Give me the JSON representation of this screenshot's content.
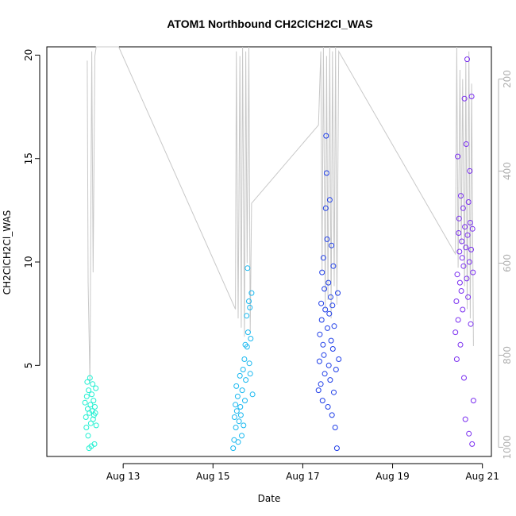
{
  "chart_data": {
    "type": "scatter",
    "title": "ATOM1 Northbound CH2ClCH2Cl_WAS",
    "xlabel": "Date",
    "ylabel": "CH2ClCH2Cl_WAS",
    "x_ticks": [
      "Aug 13",
      "Aug 15",
      "Aug 17",
      "Aug 19",
      "Aug 21"
    ],
    "x_tick_days": [
      13,
      15,
      17,
      19,
      21
    ],
    "xlim_days": [
      11.3,
      21.2
    ],
    "ylim": [
      0.6,
      20.4
    ],
    "y_ticks": [
      5,
      10,
      15,
      20
    ],
    "secondary_axis": {
      "side": "right",
      "ticks": [
        200,
        400,
        600,
        800,
        1000
      ],
      "ylim": [
        1020,
        130
      ],
      "color": "#b0b0b0",
      "series": {
        "name": "",
        "color": "#c8c8c8",
        "points": [
          [
            12.2,
            160
          ],
          [
            12.22,
            640
          ],
          [
            12.26,
            860
          ],
          [
            12.3,
            140
          ],
          [
            12.33,
            620
          ],
          [
            12.37,
            150
          ],
          [
            12.4,
            130
          ],
          [
            12.9,
            130
          ],
          [
            15.5,
            700
          ],
          [
            15.52,
            140
          ],
          [
            15.56,
            720
          ],
          [
            15.6,
            150
          ],
          [
            15.63,
            740
          ],
          [
            15.66,
            130
          ],
          [
            15.7,
            760
          ],
          [
            15.73,
            140
          ],
          [
            15.76,
            600
          ],
          [
            15.8,
            130
          ],
          [
            15.83,
            750
          ],
          [
            15.86,
            470
          ],
          [
            17.35,
            300
          ],
          [
            17.4,
            140
          ],
          [
            17.43,
            620
          ],
          [
            17.46,
            130
          ],
          [
            17.5,
            700
          ],
          [
            17.53,
            150
          ],
          [
            17.56,
            680
          ],
          [
            17.6,
            130
          ],
          [
            17.63,
            720
          ],
          [
            17.66,
            140
          ],
          [
            17.7,
            650
          ],
          [
            17.73,
            130
          ],
          [
            17.76,
            690
          ],
          [
            17.8,
            140
          ],
          [
            20.4,
            580
          ],
          [
            20.43,
            130
          ],
          [
            20.46,
            610
          ],
          [
            20.5,
            180
          ],
          [
            20.53,
            560
          ],
          [
            20.56,
            200
          ],
          [
            20.6,
            650
          ],
          [
            20.63,
            160
          ],
          [
            20.66,
            700
          ],
          [
            20.7,
            140
          ],
          [
            20.73,
            720
          ],
          [
            20.76,
            210
          ],
          [
            20.8,
            780
          ]
        ]
      }
    },
    "series": [
      {
        "name": "",
        "color": "#21f0d2",
        "points": [
          [
            12.15,
            3.2
          ],
          [
            12.17,
            2.5
          ],
          [
            12.18,
            2.0
          ],
          [
            12.19,
            3.5
          ],
          [
            12.2,
            4.2
          ],
          [
            12.21,
            2.9
          ],
          [
            12.22,
            1.6
          ],
          [
            12.23,
            3.8
          ],
          [
            12.24,
            1.0
          ],
          [
            12.25,
            2.7
          ],
          [
            12.26,
            4.4
          ],
          [
            12.27,
            3.1
          ],
          [
            12.28,
            2.2
          ],
          [
            12.29,
            1.1
          ],
          [
            12.3,
            3.6
          ],
          [
            12.31,
            2.8
          ],
          [
            12.32,
            4.1
          ],
          [
            12.33,
            2.4
          ],
          [
            12.34,
            3.3
          ],
          [
            12.35,
            2.6
          ],
          [
            12.36,
            1.2
          ],
          [
            12.37,
            3.0
          ],
          [
            12.38,
            2.7
          ],
          [
            12.39,
            3.9
          ],
          [
            12.4,
            2.1
          ]
        ]
      },
      {
        "name": "",
        "color": "#18b8f0",
        "points": [
          [
            15.45,
            1.0
          ],
          [
            15.47,
            1.4
          ],
          [
            15.48,
            2.5
          ],
          [
            15.5,
            3.1
          ],
          [
            15.51,
            2.0
          ],
          [
            15.52,
            4.0
          ],
          [
            15.53,
            2.8
          ],
          [
            15.55,
            3.5
          ],
          [
            15.56,
            1.3
          ],
          [
            15.58,
            2.3
          ],
          [
            15.6,
            4.5
          ],
          [
            15.61,
            3.0
          ],
          [
            15.62,
            2.6
          ],
          [
            15.64,
            1.6
          ],
          [
            15.65,
            3.8
          ],
          [
            15.67,
            4.8
          ],
          [
            15.68,
            2.1
          ],
          [
            15.7,
            5.3
          ],
          [
            15.71,
            3.3
          ],
          [
            15.72,
            6.0
          ],
          [
            15.73,
            4.3
          ],
          [
            15.75,
            7.4
          ],
          [
            15.76,
            5.9
          ],
          [
            15.77,
            9.7
          ],
          [
            15.78,
            6.6
          ],
          [
            15.8,
            8.1
          ],
          [
            15.81,
            5.1
          ],
          [
            15.82,
            7.8
          ],
          [
            15.83,
            4.6
          ],
          [
            15.84,
            6.3
          ],
          [
            15.86,
            8.5
          ],
          [
            15.88,
            3.6
          ]
        ]
      },
      {
        "name": "",
        "color": "#1f3ee8",
        "points": [
          [
            17.35,
            3.8
          ],
          [
            17.37,
            5.2
          ],
          [
            17.38,
            6.5
          ],
          [
            17.4,
            4.1
          ],
          [
            17.41,
            8.0
          ],
          [
            17.42,
            7.2
          ],
          [
            17.43,
            9.5
          ],
          [
            17.44,
            3.3
          ],
          [
            17.45,
            6.0
          ],
          [
            17.46,
            10.2
          ],
          [
            17.47,
            5.5
          ],
          [
            17.48,
            8.7
          ],
          [
            17.49,
            4.6
          ],
          [
            17.5,
            7.7
          ],
          [
            17.51,
            12.6
          ],
          [
            17.52,
            16.1
          ],
          [
            17.53,
            14.3
          ],
          [
            17.54,
            11.1
          ],
          [
            17.55,
            6.8
          ],
          [
            17.56,
            3.0
          ],
          [
            17.57,
            9.0
          ],
          [
            17.58,
            5.0
          ],
          [
            17.59,
            7.5
          ],
          [
            17.6,
            13.0
          ],
          [
            17.61,
            4.3
          ],
          [
            17.62,
            8.3
          ],
          [
            17.63,
            6.2
          ],
          [
            17.64,
            10.8
          ],
          [
            17.65,
            2.6
          ],
          [
            17.66,
            7.9
          ],
          [
            17.67,
            5.8
          ],
          [
            17.68,
            9.8
          ],
          [
            17.69,
            3.7
          ],
          [
            17.7,
            6.9
          ],
          [
            17.72,
            2.0
          ],
          [
            17.74,
            4.8
          ],
          [
            17.76,
            1.0
          ],
          [
            17.78,
            8.5
          ],
          [
            17.8,
            5.3
          ]
        ]
      },
      {
        "name": "",
        "color": "#7a2ef0",
        "points": [
          [
            20.4,
            6.6
          ],
          [
            20.42,
            8.1
          ],
          [
            20.43,
            5.3
          ],
          [
            20.44,
            9.4
          ],
          [
            20.45,
            15.1
          ],
          [
            20.46,
            7.2
          ],
          [
            20.47,
            11.4
          ],
          [
            20.48,
            12.1
          ],
          [
            20.49,
            10.5
          ],
          [
            20.5,
            9.0
          ],
          [
            20.51,
            6.0
          ],
          [
            20.52,
            13.2
          ],
          [
            20.53,
            8.6
          ],
          [
            20.54,
            11.0
          ],
          [
            20.55,
            10.2
          ],
          [
            20.56,
            7.7
          ],
          [
            20.57,
            12.6
          ],
          [
            20.58,
            9.8
          ],
          [
            20.59,
            4.4
          ],
          [
            20.6,
            17.9
          ],
          [
            20.61,
            11.7
          ],
          [
            20.62,
            2.4
          ],
          [
            20.63,
            10.7
          ],
          [
            20.64,
            15.7
          ],
          [
            20.65,
            9.2
          ],
          [
            20.66,
            19.8
          ],
          [
            20.67,
            11.3
          ],
          [
            20.68,
            8.3
          ],
          [
            20.69,
            12.9
          ],
          [
            20.7,
            1.7
          ],
          [
            20.71,
            10.0
          ],
          [
            20.72,
            14.4
          ],
          [
            20.73,
            11.9
          ],
          [
            20.74,
            7.0
          ],
          [
            20.75,
            10.6
          ],
          [
            20.76,
            18.0
          ],
          [
            20.77,
            1.2
          ],
          [
            20.78,
            11.6
          ],
          [
            20.79,
            9.5
          ],
          [
            20.8,
            3.3
          ]
        ]
      }
    ],
    "grid": false,
    "legend": "none"
  }
}
